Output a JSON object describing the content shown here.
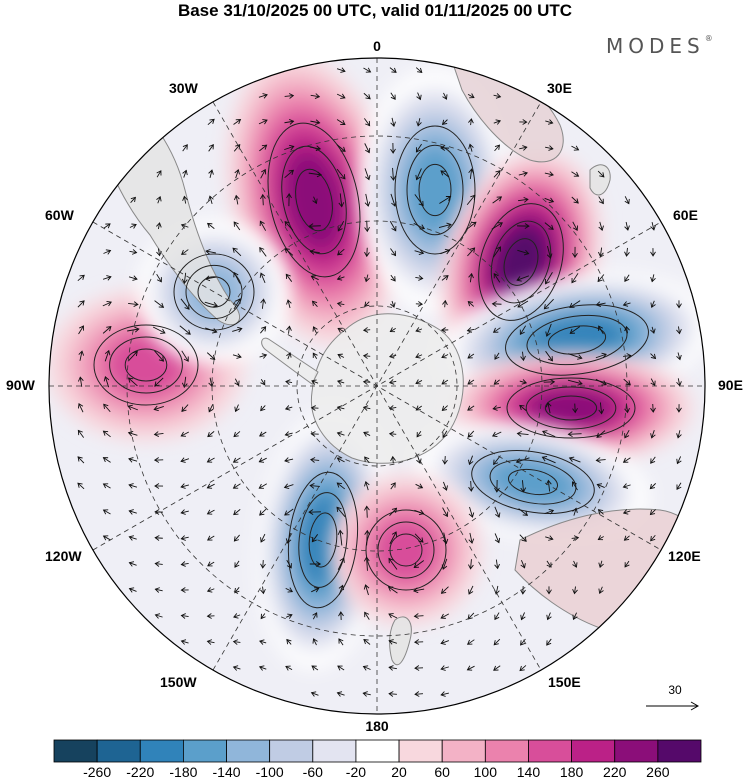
{
  "title": "Base 31/10/2025 00 UTC, valid 01/11/2025 00 UTC",
  "brand": {
    "name": "MODES",
    "mark": "®"
  },
  "map": {
    "projection": "south-polar-stereographic",
    "longitude_labels": {
      "top": "0",
      "bottom": "180",
      "left": "90W",
      "right": "90E",
      "nw1": "30W",
      "nw2": "60W",
      "ne1": "30E",
      "ne2": "60E",
      "sw1": "120W",
      "sw2": "150W",
      "se1": "120E",
      "se2": "150E"
    },
    "anomaly_centres": [
      {
        "name": "south-atlantic-high",
        "sign": "positive",
        "level": 220
      },
      {
        "name": "south-atlantic-low",
        "sign": "negative",
        "level": -180
      },
      {
        "name": "indian-ocean-high",
        "sign": "positive",
        "level": 260
      },
      {
        "name": "indian-ocean-low",
        "sign": "negative",
        "level": -220
      },
      {
        "name": "kerguelen-high",
        "sign": "positive",
        "level": 220
      },
      {
        "name": "south-of-australia-low",
        "sign": "negative",
        "level": -180
      },
      {
        "name": "ross-sea-low",
        "sign": "negative",
        "level": -220
      },
      {
        "name": "tasman-high",
        "sign": "positive",
        "level": 140
      },
      {
        "name": "pacific-high",
        "sign": "positive",
        "level": 140
      },
      {
        "name": "amundsen-low",
        "sign": "negative",
        "level": -140
      }
    ]
  },
  "vector_reference": {
    "value": "30"
  },
  "colorbar": {
    "ticks": [
      "-260",
      "-220",
      "-180",
      "-140",
      "-100",
      "-60",
      "-20",
      "20",
      "60",
      "100",
      "140",
      "180",
      "220",
      "260"
    ],
    "colors": [
      "#16425e",
      "#1e6493",
      "#3083ba",
      "#5b9fcb",
      "#90b6da",
      "#c0cce4",
      "#e3e4f1",
      "#ffffff",
      "#f8d8de",
      "#f3b2c6",
      "#eb82ad",
      "#d84e9a",
      "#bb2187",
      "#8b0e79",
      "#55096a"
    ]
  }
}
